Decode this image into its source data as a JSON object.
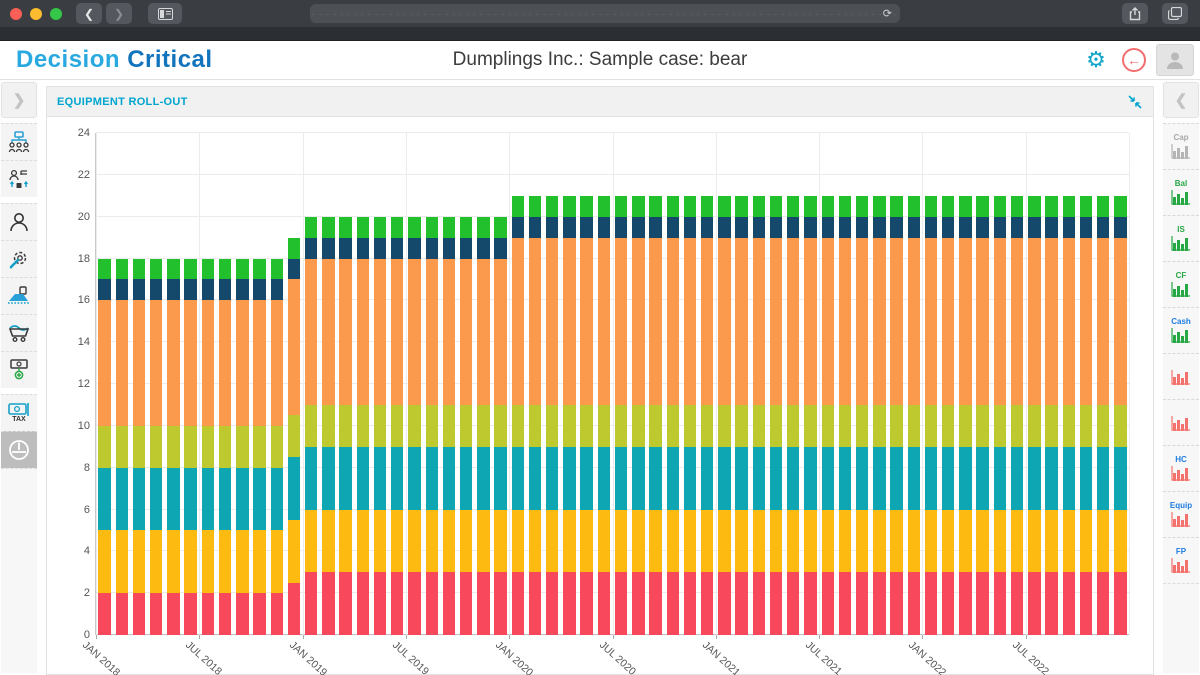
{
  "theme": {
    "chrome_bg": "#3a3e43",
    "chrome_strip": "#2b2e32",
    "traffic_red": "#f95f57",
    "traffic_yellow": "#fbbc2f",
    "traffic_green": "#34c748",
    "logo_primary_color": "#2aa9e0",
    "logo_secondary_color": "#1274bd",
    "accent_teal": "#00a5cf",
    "accent_red": "#f26d6d",
    "selected_item_bg": "#bdbdbd"
  },
  "browser": {
    "back_glyph": "❮",
    "forward_glyph": "❯",
    "reload_glyph": "⟳"
  },
  "header": {
    "logo_primary": "Decision",
    "logo_secondary": "Critical",
    "title": "Dumplings Inc.: Sample case: bear"
  },
  "panel": {
    "title": "EQUIPMENT ROLL-OUT"
  },
  "left_sidebar": {
    "expand_glyph": "❯",
    "tax_label": "TAX",
    "items": [
      "org-structure",
      "hr-transfers",
      "person",
      "settings-gear",
      "production-line",
      "procurement-cart",
      "revenue-add",
      "taxes",
      "dashboard-gauge"
    ],
    "selected_item": "dashboard-gauge"
  },
  "right_sidebar": {
    "collapse_glyph": "❮",
    "items": [
      {
        "label": "Cap",
        "label_color": "#a9a9a9",
        "chart_color": "#b5b5b5"
      },
      {
        "label": "Bal",
        "label_color": "#28a745",
        "chart_color": "#28a745"
      },
      {
        "label": "IS",
        "label_color": "#28a745",
        "chart_color": "#28a745"
      },
      {
        "label": "CF",
        "label_color": "#28a745",
        "chart_color": "#28a745"
      },
      {
        "label": "Cash",
        "label_color": "#1f7ce0",
        "chart_color": "#28a745"
      },
      {
        "label": "",
        "label_color": "#555555",
        "chart_color": "#f4726d"
      },
      {
        "label": "",
        "label_color": "#555555",
        "chart_color": "#f4726d"
      },
      {
        "label": "HC",
        "label_color": "#1f7ce0",
        "chart_color": "#f4726d"
      },
      {
        "label": "Equip",
        "label_color": "#1f7ce0",
        "chart_color": "#f4726d"
      },
      {
        "label": "FP",
        "label_color": "#1f7ce0",
        "chart_color": "#f4726d"
      }
    ]
  },
  "chart_data": {
    "type": "bar",
    "stacked": true,
    "title": "EQUIPMENT ROLL-OUT",
    "x_start": "Jan 2018",
    "x_end": "Dec 2022",
    "x_interval": "monthly",
    "bar_count": 60,
    "ylim": [
      0,
      24
    ],
    "y_tick_step": 2,
    "y_ticks": [
      0,
      2,
      4,
      6,
      8,
      10,
      12,
      14,
      16,
      18,
      20,
      22,
      24
    ],
    "x_ticks": [
      {
        "index": 0,
        "label": "JAN 2018"
      },
      {
        "index": 6,
        "label": "JUL 2018"
      },
      {
        "index": 12,
        "label": "JAN 2019"
      },
      {
        "index": 18,
        "label": "JUL 2019"
      },
      {
        "index": 24,
        "label": "JAN 2020"
      },
      {
        "index": 30,
        "label": "JUL 2020"
      },
      {
        "index": 36,
        "label": "JAN 2021"
      },
      {
        "index": 42,
        "label": "JUL 2021"
      },
      {
        "index": 48,
        "label": "JAN 2022"
      },
      {
        "index": 54,
        "label": "JUL 2022"
      }
    ],
    "grid": true,
    "legend": "none",
    "series": [
      {
        "name": "stack-level-1-red",
        "color": "#f8495c",
        "values": [
          2,
          2,
          2,
          2,
          2,
          2,
          2,
          2,
          2,
          2,
          2,
          2.5,
          3,
          3,
          3,
          3,
          3,
          3,
          3,
          3,
          3,
          3,
          3,
          3,
          3,
          3,
          3,
          3,
          3,
          3,
          3,
          3,
          3,
          3,
          3,
          3,
          3,
          3,
          3,
          3,
          3,
          3,
          3,
          3,
          3,
          3,
          3,
          3,
          3,
          3,
          3,
          3,
          3,
          3,
          3,
          3,
          3,
          3,
          3,
          3
        ]
      },
      {
        "name": "stack-level-2-amber",
        "color": "#fdbb11",
        "values": [
          3,
          3,
          3,
          3,
          3,
          3,
          3,
          3,
          3,
          3,
          3,
          3,
          3,
          3,
          3,
          3,
          3,
          3,
          3,
          3,
          3,
          3,
          3,
          3,
          3,
          3,
          3,
          3,
          3,
          3,
          3,
          3,
          3,
          3,
          3,
          3,
          3,
          3,
          3,
          3,
          3,
          3,
          3,
          3,
          3,
          3,
          3,
          3,
          3,
          3,
          3,
          3,
          3,
          3,
          3,
          3,
          3,
          3,
          3,
          3
        ]
      },
      {
        "name": "stack-level-3-teal",
        "color": "#0da6b2",
        "values": [
          3,
          3,
          3,
          3,
          3,
          3,
          3,
          3,
          3,
          3,
          3,
          3,
          3,
          3,
          3,
          3,
          3,
          3,
          3,
          3,
          3,
          3,
          3,
          3,
          3,
          3,
          3,
          3,
          3,
          3,
          3,
          3,
          3,
          3,
          3,
          3,
          3,
          3,
          3,
          3,
          3,
          3,
          3,
          3,
          3,
          3,
          3,
          3,
          3,
          3,
          3,
          3,
          3,
          3,
          3,
          3,
          3,
          3,
          3,
          3
        ]
      },
      {
        "name": "stack-level-4-olive",
        "color": "#bec92f",
        "values": [
          2,
          2,
          2,
          2,
          2,
          2,
          2,
          2,
          2,
          2,
          2,
          2,
          2,
          2,
          2,
          2,
          2,
          2,
          2,
          2,
          2,
          2,
          2,
          2,
          2,
          2,
          2,
          2,
          2,
          2,
          2,
          2,
          2,
          2,
          2,
          2,
          2,
          2,
          2,
          2,
          2,
          2,
          2,
          2,
          2,
          2,
          2,
          2,
          2,
          2,
          2,
          2,
          2,
          2,
          2,
          2,
          2,
          2,
          2,
          2
        ]
      },
      {
        "name": "stack-level-5-orange",
        "color": "#fb9a4d",
        "values": [
          6,
          6,
          6,
          6,
          6,
          6,
          6,
          6,
          6,
          6,
          6,
          6.5,
          7,
          7,
          7,
          7,
          7,
          7,
          7,
          7,
          7,
          7,
          7,
          7,
          8,
          8,
          8,
          8,
          8,
          8,
          8,
          8,
          8,
          8,
          8,
          8,
          8,
          8,
          8,
          8,
          8,
          8,
          8,
          8,
          8,
          8,
          8,
          8,
          8,
          8,
          8,
          8,
          8,
          8,
          8,
          8,
          8,
          8,
          8,
          8
        ]
      },
      {
        "name": "stack-level-6-navy",
        "color": "#15496c",
        "values": [
          1,
          1,
          1,
          1,
          1,
          1,
          1,
          1,
          1,
          1,
          1,
          1,
          1,
          1,
          1,
          1,
          1,
          1,
          1,
          1,
          1,
          1,
          1,
          1,
          1,
          1,
          1,
          1,
          1,
          1,
          1,
          1,
          1,
          1,
          1,
          1,
          1,
          1,
          1,
          1,
          1,
          1,
          1,
          1,
          1,
          1,
          1,
          1,
          1,
          1,
          1,
          1,
          1,
          1,
          1,
          1,
          1,
          1,
          1,
          1
        ]
      },
      {
        "name": "stack-level-7-green",
        "color": "#23c02e",
        "values": [
          1,
          1,
          1,
          1,
          1,
          1,
          1,
          1,
          1,
          1,
          1,
          1,
          1,
          1,
          1,
          1,
          1,
          1,
          1,
          1,
          1,
          1,
          1,
          1,
          1,
          1,
          1,
          1,
          1,
          1,
          1,
          1,
          1,
          1,
          1,
          1,
          1,
          1,
          1,
          1,
          1,
          1,
          1,
          1,
          1,
          1,
          1,
          1,
          1,
          1,
          1,
          1,
          1,
          1,
          1,
          1,
          1,
          1,
          1,
          1
        ]
      }
    ]
  }
}
